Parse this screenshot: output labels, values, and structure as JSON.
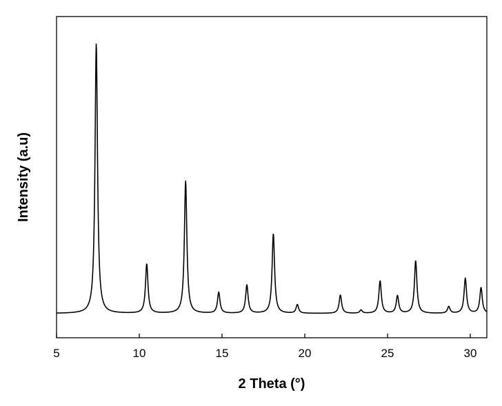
{
  "chart_data": {
    "type": "line",
    "title": "",
    "xlabel": "2 Theta (°)",
    "ylabel": "Intensity (a.u)",
    "xlim": [
      5,
      31
    ],
    "ylim": [
      -0.09,
      1.1
    ],
    "xticks": [
      5,
      10,
      15,
      20,
      25,
      30
    ],
    "y_tick_labels_shown": false,
    "grid": false,
    "legend": "none",
    "line_color": "#000000",
    "baseline": 0.0,
    "peaks": [
      {
        "x": 7.4,
        "y": 1.0
      },
      {
        "x": 10.45,
        "y": 0.183
      },
      {
        "x": 12.8,
        "y": 0.49
      },
      {
        "x": 14.8,
        "y": 0.078
      },
      {
        "x": 16.5,
        "y": 0.105
      },
      {
        "x": 18.1,
        "y": 0.295
      },
      {
        "x": 19.55,
        "y": 0.032
      },
      {
        "x": 22.15,
        "y": 0.068
      },
      {
        "x": 23.4,
        "y": 0.012
      },
      {
        "x": 24.55,
        "y": 0.12
      },
      {
        "x": 25.6,
        "y": 0.065
      },
      {
        "x": 26.7,
        "y": 0.195
      },
      {
        "x": 28.7,
        "y": 0.025
      },
      {
        "x": 29.7,
        "y": 0.13
      },
      {
        "x": 30.65,
        "y": 0.095
      }
    ]
  }
}
